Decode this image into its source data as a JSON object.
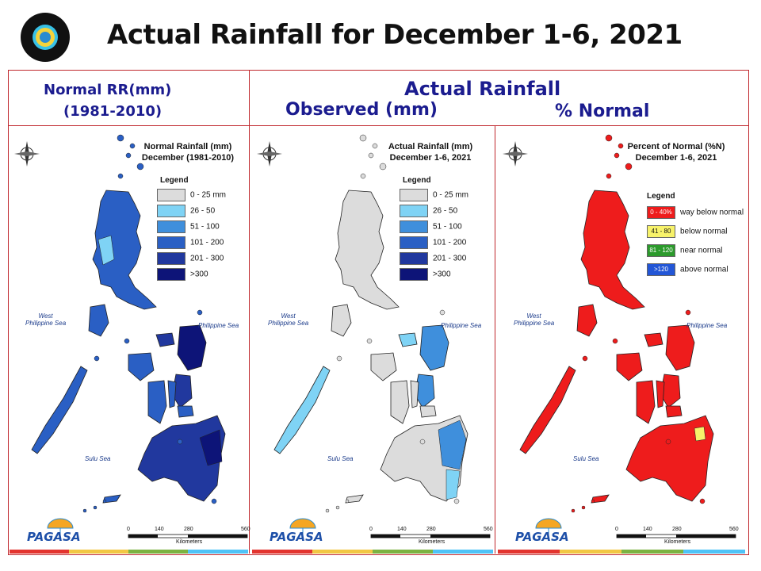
{
  "title": "Actual Rainfall for December 1-6, 2021",
  "headers": {
    "normal_line1": "Normal RR(mm)",
    "normal_line2": "(1981-2010)",
    "actual": "Actual Rainfall",
    "observed": "Observed (mm)",
    "percent": "% Normal"
  },
  "panels": [
    {
      "id": "normal",
      "title_line1": "Normal Rainfall (mm)",
      "title_line2": "December (1981-2010)",
      "legend_title": "Legend",
      "legend": [
        {
          "label": "0 - 25 mm",
          "color": "#dcdcdc"
        },
        {
          "label": "26 - 50",
          "color": "#7fd3f5"
        },
        {
          "label": "51 - 100",
          "color": "#3f8fdc"
        },
        {
          "label": "101 - 200",
          "color": "#2a5fc4"
        },
        {
          "label": "201 - 300",
          "color": "#21389e"
        },
        {
          "label": ">300",
          "color": "#0d1478"
        }
      ],
      "sea_west": [
        "West",
        "Philippine Sea"
      ],
      "sea_east": "Philippine Sea",
      "sea_south": "Sulu Sea"
    },
    {
      "id": "observed",
      "title_line1": "Actual Rainfall (mm)",
      "title_line2": "December 1-6, 2021",
      "legend_title": "Legend",
      "legend": [
        {
          "label": "0 - 25 mm",
          "color": "#dcdcdc"
        },
        {
          "label": "26 - 50",
          "color": "#7fd3f5"
        },
        {
          "label": "51 - 100",
          "color": "#3f8fdc"
        },
        {
          "label": "101 - 200",
          "color": "#2a5fc4"
        },
        {
          "label": "201 - 300",
          "color": "#21389e"
        },
        {
          "label": ">300",
          "color": "#0d1478"
        }
      ],
      "sea_west": [
        "West",
        "Philippine Sea"
      ],
      "sea_east": "Philippine Sea",
      "sea_south": "Sulu Sea"
    },
    {
      "id": "percent",
      "title_line1": "Percent of Normal (%N)",
      "title_line2": "December 1-6, 2021",
      "legend_title": "Legend",
      "legend": [
        {
          "swatch": "0 - 40%",
          "label": "way below normal",
          "color": "#ee1c1c"
        },
        {
          "swatch": "41 - 80",
          "label": "below normal",
          "color": "#f7f26a"
        },
        {
          "swatch": "81 - 120",
          "label": "near normal",
          "color": "#2c9a2c"
        },
        {
          "swatch": ">120",
          "label": "above normal",
          "color": "#2356d6"
        }
      ],
      "sea_west": [
        "West",
        "Philippine Sea"
      ],
      "sea_east": "Philippine Sea",
      "sea_south": "Sulu Sea"
    }
  ],
  "scale_labels": [
    "0",
    "140",
    "280",
    "560"
  ],
  "scale_unit": "Kilometers",
  "branding": "PAGASA",
  "map_colors": {
    "normal_north": "#2a5fc4",
    "normal_south": "#21389e",
    "normal_east": "#0d1478",
    "normal_light": "#7fd3f5",
    "observed_base": "#dcdcdc",
    "observed_blue": "#3f8fdc",
    "observed_light": "#7fd3f5",
    "percent_red": "#ee1c1c",
    "percent_yellow": "#f7f26a",
    "outline": "#222222"
  },
  "stripe_colors": [
    "#e3342f",
    "#f2c744",
    "#7cb342",
    "#4fc3f7"
  ]
}
